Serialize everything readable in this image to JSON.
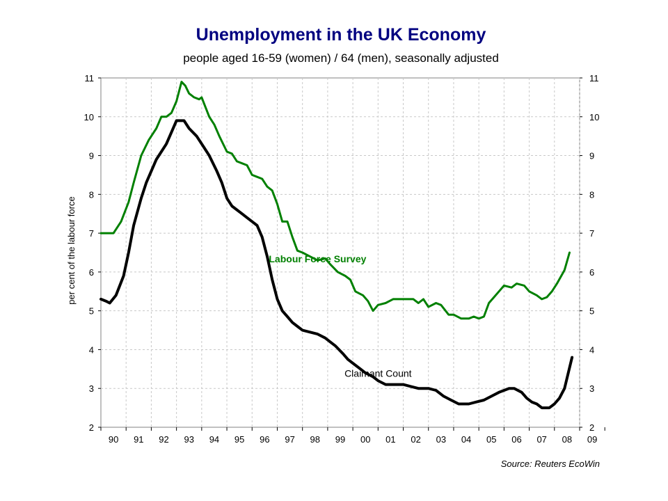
{
  "chart_data": {
    "type": "line",
    "title": "Unemployment in the UK Economy",
    "subtitle": "people aged 16-59 (women) / 64 (men), seasonally adjusted",
    "ylabel": "per cent of the labour force",
    "ylim": [
      2,
      11
    ],
    "xlim": [
      1990,
      2009
    ],
    "y_ticks": [
      2,
      3,
      4,
      5,
      6,
      7,
      8,
      9,
      10,
      11
    ],
    "x_tick_labels": [
      "90",
      "91",
      "92",
      "93",
      "94",
      "95",
      "96",
      "97",
      "98",
      "99",
      "00",
      "01",
      "02",
      "03",
      "04",
      "05",
      "06",
      "07",
      "08",
      "09"
    ],
    "grid": true,
    "source": "Source: Reuters EcoWin",
    "series": [
      {
        "name": "Labour Force Survey",
        "color": "#008000",
        "points": [
          [
            1990.0,
            7.0
          ],
          [
            1990.5,
            7.0
          ],
          [
            1990.8,
            7.3
          ],
          [
            1991.1,
            7.8
          ],
          [
            1991.3,
            8.3
          ],
          [
            1991.6,
            9.0
          ],
          [
            1991.9,
            9.4
          ],
          [
            1992.2,
            9.7
          ],
          [
            1992.4,
            10.0
          ],
          [
            1992.6,
            10.0
          ],
          [
            1992.8,
            10.1
          ],
          [
            1993.0,
            10.4
          ],
          [
            1993.2,
            10.9
          ],
          [
            1993.35,
            10.8
          ],
          [
            1993.5,
            10.6
          ],
          [
            1993.7,
            10.5
          ],
          [
            1993.9,
            10.45
          ],
          [
            1994.0,
            10.5
          ],
          [
            1994.3,
            10.0
          ],
          [
            1994.5,
            9.8
          ],
          [
            1994.7,
            9.5
          ],
          [
            1995.0,
            9.1
          ],
          [
            1995.2,
            9.05
          ],
          [
            1995.4,
            8.85
          ],
          [
            1995.6,
            8.8
          ],
          [
            1995.8,
            8.75
          ],
          [
            1996.0,
            8.5
          ],
          [
            1996.2,
            8.45
          ],
          [
            1996.4,
            8.4
          ],
          [
            1996.6,
            8.2
          ],
          [
            1996.8,
            8.1
          ],
          [
            1997.0,
            7.75
          ],
          [
            1997.2,
            7.3
          ],
          [
            1997.4,
            7.3
          ],
          [
            1997.6,
            6.9
          ],
          [
            1997.8,
            6.55
          ],
          [
            1998.0,
            6.5
          ],
          [
            1998.3,
            6.4
          ],
          [
            1998.6,
            6.3
          ],
          [
            1998.9,
            6.35
          ],
          [
            1999.1,
            6.2
          ],
          [
            1999.4,
            6.0
          ],
          [
            1999.7,
            5.9
          ],
          [
            1999.9,
            5.8
          ],
          [
            2000.1,
            5.5
          ],
          [
            2000.4,
            5.4
          ],
          [
            2000.6,
            5.25
          ],
          [
            2000.8,
            5.0
          ],
          [
            2001.0,
            5.15
          ],
          [
            2001.3,
            5.2
          ],
          [
            2001.6,
            5.3
          ],
          [
            2001.9,
            5.3
          ],
          [
            2002.1,
            5.3
          ],
          [
            2002.4,
            5.3
          ],
          [
            2002.6,
            5.2
          ],
          [
            2002.8,
            5.3
          ],
          [
            2003.0,
            5.1
          ],
          [
            2003.3,
            5.2
          ],
          [
            2003.5,
            5.15
          ],
          [
            2003.8,
            4.9
          ],
          [
            2004.0,
            4.9
          ],
          [
            2004.3,
            4.8
          ],
          [
            2004.6,
            4.8
          ],
          [
            2004.8,
            4.85
          ],
          [
            2005.0,
            4.8
          ],
          [
            2005.2,
            4.85
          ],
          [
            2005.4,
            5.2
          ],
          [
            2005.6,
            5.35
          ],
          [
            2005.8,
            5.5
          ],
          [
            2006.0,
            5.65
          ],
          [
            2006.3,
            5.6
          ],
          [
            2006.5,
            5.7
          ],
          [
            2006.8,
            5.65
          ],
          [
            2007.0,
            5.5
          ],
          [
            2007.3,
            5.4
          ],
          [
            2007.5,
            5.3
          ],
          [
            2007.7,
            5.35
          ],
          [
            2007.9,
            5.5
          ],
          [
            2008.1,
            5.7
          ],
          [
            2008.4,
            6.05
          ],
          [
            2008.6,
            6.5
          ]
        ]
      },
      {
        "name": "Claimant Count",
        "color": "#000000",
        "points": [
          [
            1990.0,
            5.3
          ],
          [
            1990.2,
            5.25
          ],
          [
            1990.35,
            5.2
          ],
          [
            1990.6,
            5.4
          ],
          [
            1990.9,
            5.9
          ],
          [
            1991.1,
            6.5
          ],
          [
            1991.3,
            7.2
          ],
          [
            1991.6,
            7.9
          ],
          [
            1991.8,
            8.3
          ],
          [
            1992.0,
            8.6
          ],
          [
            1992.2,
            8.9
          ],
          [
            1992.4,
            9.1
          ],
          [
            1992.6,
            9.3
          ],
          [
            1992.8,
            9.6
          ],
          [
            1993.0,
            9.9
          ],
          [
            1993.3,
            9.9
          ],
          [
            1993.5,
            9.7
          ],
          [
            1993.8,
            9.5
          ],
          [
            1994.1,
            9.2
          ],
          [
            1994.3,
            9.0
          ],
          [
            1994.6,
            8.6
          ],
          [
            1994.8,
            8.3
          ],
          [
            1995.0,
            7.9
          ],
          [
            1995.2,
            7.7
          ],
          [
            1995.4,
            7.6
          ],
          [
            1995.6,
            7.5
          ],
          [
            1995.8,
            7.4
          ],
          [
            1996.0,
            7.3
          ],
          [
            1996.2,
            7.2
          ],
          [
            1996.4,
            6.9
          ],
          [
            1996.6,
            6.4
          ],
          [
            1996.8,
            5.8
          ],
          [
            1997.0,
            5.3
          ],
          [
            1997.2,
            5.0
          ],
          [
            1997.4,
            4.85
          ],
          [
            1997.6,
            4.7
          ],
          [
            1997.8,
            4.6
          ],
          [
            1998.0,
            4.5
          ],
          [
            1998.3,
            4.45
          ],
          [
            1998.6,
            4.4
          ],
          [
            1998.9,
            4.3
          ],
          [
            1999.1,
            4.2
          ],
          [
            1999.3,
            4.1
          ],
          [
            1999.6,
            3.9
          ],
          [
            1999.8,
            3.75
          ],
          [
            2000.0,
            3.65
          ],
          [
            2000.3,
            3.5
          ],
          [
            2000.5,
            3.4
          ],
          [
            2000.8,
            3.3
          ],
          [
            2001.0,
            3.2
          ],
          [
            2001.3,
            3.1
          ],
          [
            2001.6,
            3.1
          ],
          [
            2002.0,
            3.1
          ],
          [
            2002.3,
            3.05
          ],
          [
            2002.6,
            3.0
          ],
          [
            2003.0,
            3.0
          ],
          [
            2003.3,
            2.95
          ],
          [
            2003.6,
            2.8
          ],
          [
            2003.9,
            2.7
          ],
          [
            2004.2,
            2.6
          ],
          [
            2004.6,
            2.6
          ],
          [
            2004.9,
            2.65
          ],
          [
            2005.2,
            2.7
          ],
          [
            2005.5,
            2.8
          ],
          [
            2005.8,
            2.9
          ],
          [
            2006.0,
            2.95
          ],
          [
            2006.2,
            3.0
          ],
          [
            2006.4,
            3.0
          ],
          [
            2006.7,
            2.9
          ],
          [
            2006.9,
            2.75
          ],
          [
            2007.1,
            2.65
          ],
          [
            2007.3,
            2.6
          ],
          [
            2007.5,
            2.5
          ],
          [
            2007.8,
            2.5
          ],
          [
            2008.0,
            2.6
          ],
          [
            2008.2,
            2.75
          ],
          [
            2008.4,
            3.0
          ],
          [
            2008.55,
            3.4
          ],
          [
            2008.7,
            3.8
          ]
        ]
      }
    ],
    "annotations": [
      {
        "text": "Labour Force Survey",
        "x": 1998.6,
        "y": 6.25,
        "color": "#008000"
      },
      {
        "text": "Claimant Count",
        "x": 2001.0,
        "y": 3.3,
        "color": "#000000"
      }
    ]
  }
}
